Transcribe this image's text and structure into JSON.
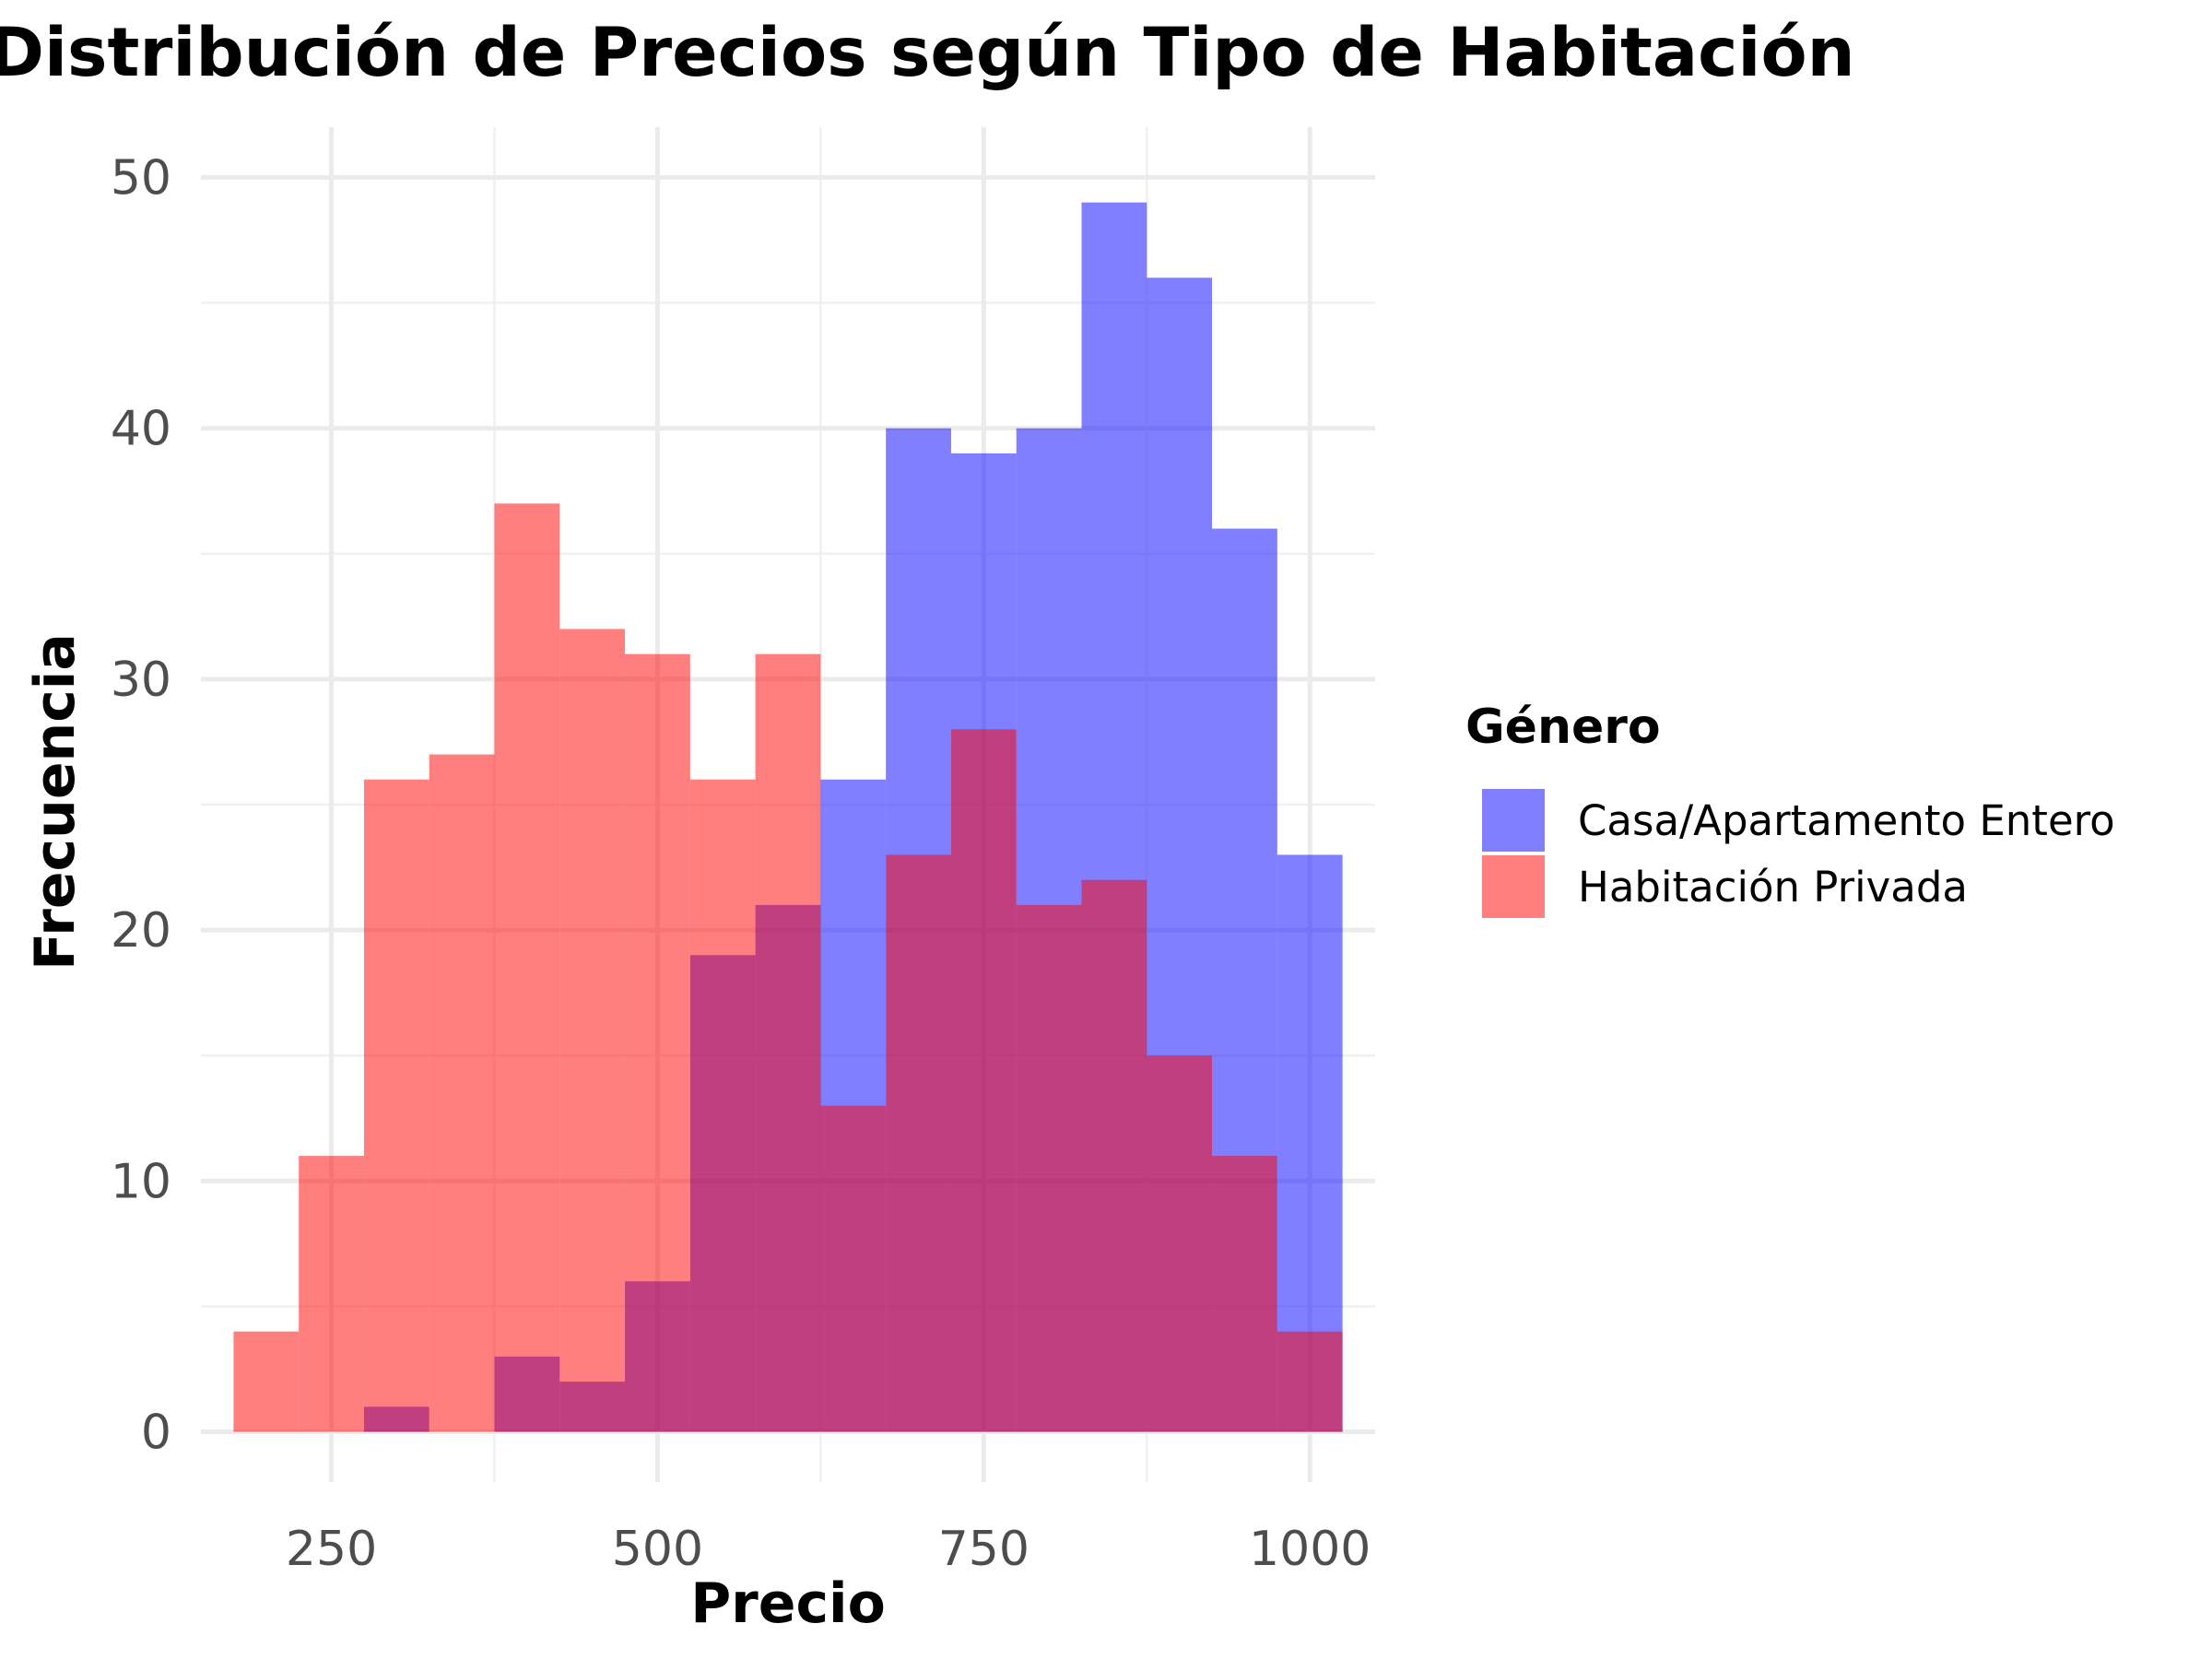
{
  "chart_data": {
    "type": "histogram",
    "title": "Distribución de Precios según Tipo de Habitación",
    "xlabel": "Precio",
    "ylabel": "Frecuencia",
    "xlim": [
      150,
      1050
    ],
    "ylim": [
      -2,
      52
    ],
    "x_ticks": [
      250,
      500,
      750,
      1000
    ],
    "x_minor_ticks": [
      375,
      625,
      875
    ],
    "y_ticks": [
      0,
      10,
      20,
      30,
      40,
      50
    ],
    "y_minor_ticks": [
      5,
      15,
      25,
      35,
      45
    ],
    "grid": true,
    "bin_width": 50,
    "bin_starts": [
      175,
      225,
      275,
      325,
      375,
      425,
      475,
      525,
      575,
      625,
      675,
      725,
      775,
      825,
      875,
      925,
      975
    ],
    "legend": {
      "title": "Género",
      "position": "right"
    },
    "series": [
      {
        "name": "Casa/Apartamento Entero",
        "color": "#0000ff",
        "opacity": 0.5,
        "values": [
          0,
          0,
          1,
          0,
          3,
          2,
          6,
          19,
          21,
          26,
          40,
          39,
          40,
          49,
          46,
          36,
          23
        ]
      },
      {
        "name": "Habitación Privada",
        "color": "#ff0000",
        "opacity": 0.5,
        "values": [
          4,
          11,
          26,
          27,
          37,
          32,
          31,
          26,
          31,
          13,
          23,
          28,
          21,
          22,
          15,
          11,
          4
        ]
      }
    ]
  }
}
